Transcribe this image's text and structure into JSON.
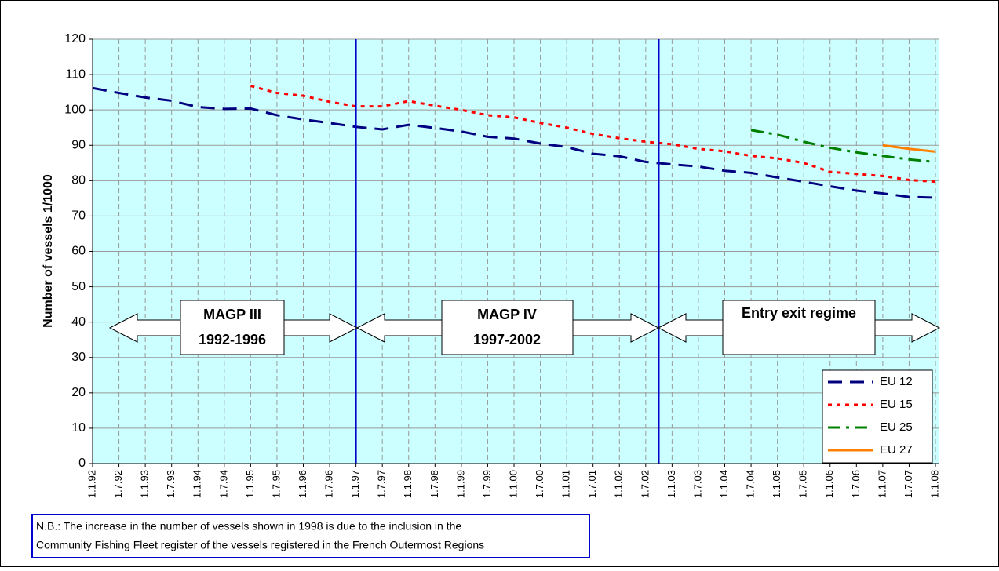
{
  "chart_data": {
    "type": "line",
    "y_label": "Number of vessels 1/1000",
    "categories": [
      "1.1.92",
      "1.7.92",
      "1.1.93",
      "1.7.93",
      "1.1.94",
      "1.7.94",
      "1.1.95",
      "1.7.95",
      "1.1.96",
      "1.7.96",
      "1.1.97",
      "1.7.97",
      "1.1.98",
      "1.7.98",
      "1.1.99",
      "1.7.99",
      "1.1.00",
      "1.7.00",
      "1.1.01",
      "1.7.01",
      "1.1.02",
      "1.7.02",
      "1.1.03",
      "1.7.03",
      "1.1.04",
      "1.7.04",
      "1.1.05",
      "1.7.05",
      "1.1.06",
      "1.7.06",
      "1.1.07",
      "1.7.07",
      "1.1.08"
    ],
    "series": [
      {
        "name": "EU 12",
        "color": "#000080",
        "values": [
          106.2,
          104.8,
          103.5,
          102.6,
          100.8,
          100.3,
          100.4,
          98.5,
          97.3,
          96.3,
          95.2,
          94.5,
          95.8,
          94.9,
          93.9,
          92.4,
          91.9,
          90.5,
          89.5,
          87.6,
          86.9,
          85.3,
          84.6,
          84.0,
          82.8,
          82.2,
          80.9,
          79.7,
          78.4,
          77.2,
          76.4,
          75.4,
          75.2
        ]
      },
      {
        "name": "EU 15",
        "color": "#ff0000",
        "values": [
          null,
          null,
          null,
          null,
          null,
          null,
          106.8,
          104.8,
          104.0,
          102.3,
          101.0,
          101.0,
          102.5,
          101.2,
          100.0,
          98.5,
          97.9,
          96.3,
          95.0,
          93.2,
          92.0,
          91.0,
          90.3,
          89.0,
          88.3,
          87.0,
          86.3,
          85.0,
          82.5,
          81.9,
          81.3,
          80.2,
          79.7
        ]
      },
      {
        "name": "EU 25",
        "color": "#008000",
        "values": [
          null,
          null,
          null,
          null,
          null,
          null,
          null,
          null,
          null,
          null,
          null,
          null,
          null,
          null,
          null,
          null,
          null,
          null,
          null,
          null,
          null,
          null,
          null,
          null,
          null,
          94.3,
          93.0,
          91.0,
          89.3,
          88.0,
          87.0,
          86.0,
          85.3
        ]
      },
      {
        "name": "EU 27",
        "color": "#ff8000",
        "values": [
          null,
          null,
          null,
          null,
          null,
          null,
          null,
          null,
          null,
          null,
          null,
          null,
          null,
          null,
          null,
          null,
          null,
          null,
          null,
          null,
          null,
          null,
          null,
          null,
          null,
          null,
          null,
          null,
          null,
          null,
          90.0,
          89.0,
          88.2
        ]
      }
    ],
    "ylim": [
      0,
      120
    ],
    "yticks": [
      0,
      10,
      20,
      30,
      40,
      50,
      60,
      70,
      80,
      90,
      100,
      110,
      120
    ],
    "grid": true,
    "annotations": [
      [
        "MAGP III",
        "1992-1996"
      ],
      [
        "MAGP IV",
        "1997-2002"
      ],
      [
        "Entry exit regime"
      ]
    ],
    "note": [
      "N.B.: The increase in the number of vessels shown in 1998 is due to the inclusion in the",
      "Community Fishing Fleet register of the vessels registered in the French Outermost Regions"
    ]
  }
}
